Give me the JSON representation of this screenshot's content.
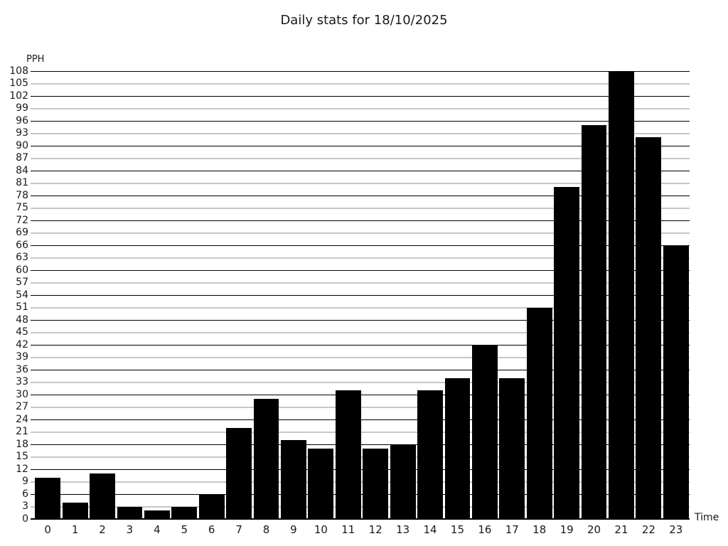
{
  "title": "Daily stats for 18/10/2025",
  "chart_data": {
    "type": "bar",
    "title": "Daily stats for 18/10/2025",
    "xlabel": "Time",
    "ylabel": "PPH",
    "categories": [
      "0",
      "1",
      "2",
      "3",
      "4",
      "5",
      "6",
      "7",
      "8",
      "9",
      "10",
      "11",
      "12",
      "13",
      "14",
      "15",
      "16",
      "17",
      "18",
      "19",
      "20",
      "21",
      "22",
      "23"
    ],
    "values": [
      10,
      4,
      11,
      3,
      2,
      3,
      6,
      22,
      29,
      19,
      17,
      31,
      17,
      18,
      31,
      34,
      42,
      34,
      51,
      80,
      95,
      108,
      92,
      66
    ],
    "ylim": [
      0,
      108
    ],
    "ytick_step": 3,
    "grid": "horizontal",
    "legend": "none",
    "bar_color": "#000000",
    "major_grid_color": "#000000",
    "minor_grid_color": "#c6c6c6",
    "axis_color": "#000000",
    "background_color": "#ffffff"
  }
}
